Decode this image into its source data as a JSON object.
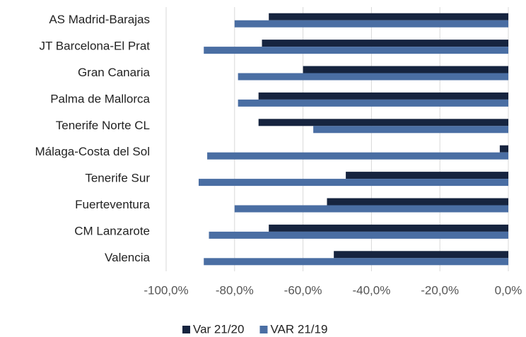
{
  "chart_data": {
    "type": "bar",
    "orientation": "horizontal",
    "categories": [
      "AS Madrid-Barajas",
      "JT Barcelona-El Prat",
      "Gran Canaria",
      "Palma de Mallorca",
      "Tenerife Norte CL",
      "Málaga-Costa del Sol",
      "Tenerife Sur",
      "Fuerteventura",
      "CM Lanzarote",
      "Valencia"
    ],
    "series": [
      {
        "name": "Var 21/20",
        "color": "#16243f",
        "values": [
          -70,
          -72,
          -60,
          -73,
          -73,
          -2.5,
          -47.5,
          -53,
          -70,
          -51
        ]
      },
      {
        "name": "VAR 21/19",
        "color": "#4a6ea3",
        "values": [
          -80,
          -89,
          -79,
          -79,
          -57,
          -88,
          -90.5,
          -80,
          -87.5,
          -89
        ]
      }
    ],
    "xlim": [
      -100,
      0
    ],
    "xticks": [
      {
        "value": -100,
        "label": "-100,0%"
      },
      {
        "value": -80,
        "label": "-80,0%"
      },
      {
        "value": -60,
        "label": "-60,0%"
      },
      {
        "value": -40,
        "label": "-40,0%"
      },
      {
        "value": -20,
        "label": "-20,0%"
      },
      {
        "value": 0,
        "label": "0,0%"
      }
    ],
    "grid": true,
    "legend": "bottom"
  }
}
